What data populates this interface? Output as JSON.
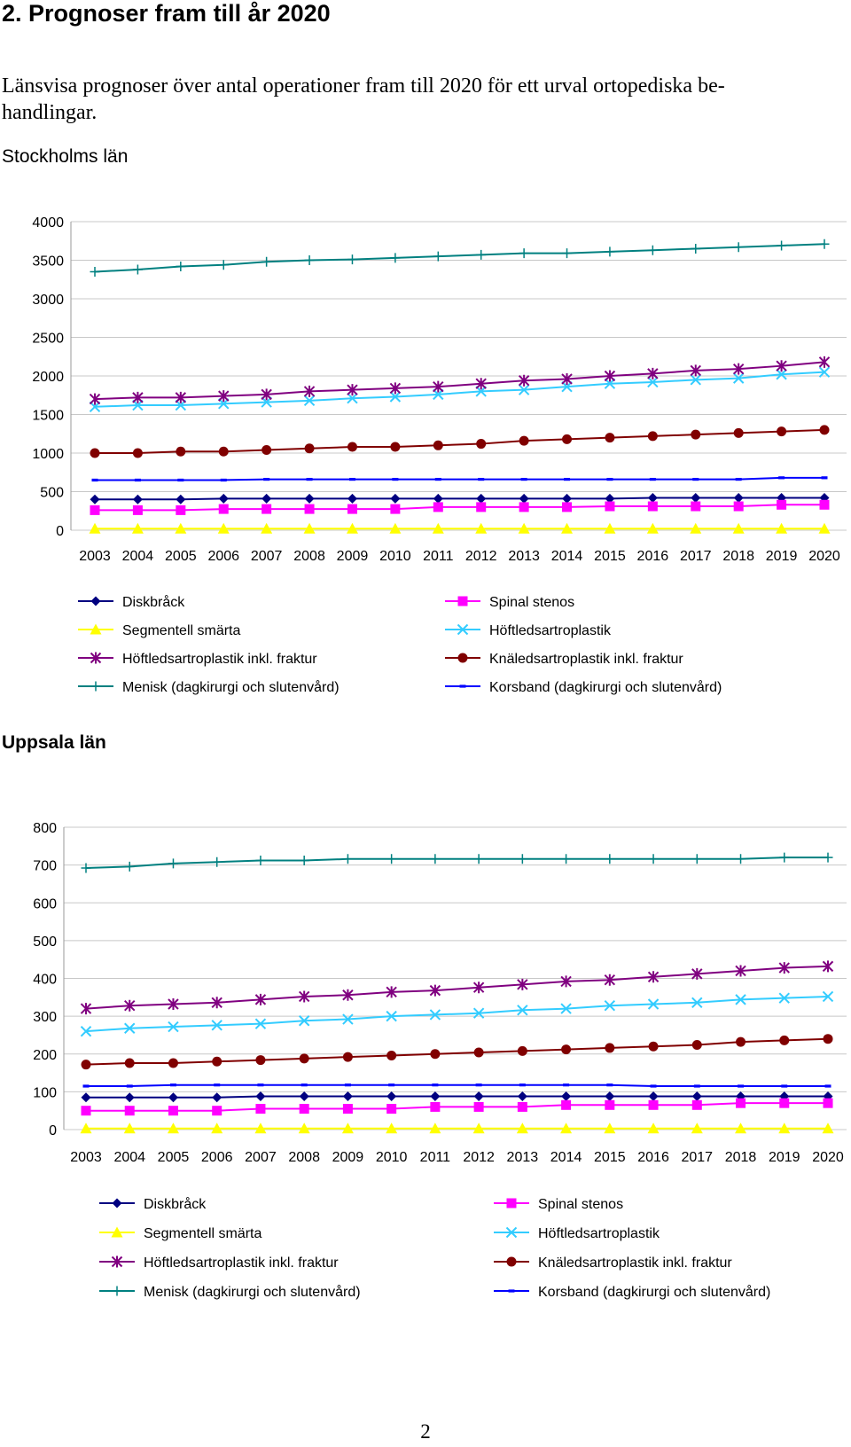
{
  "heading": "2. Prognoser fram till år 2020",
  "intro": "Länsvisa prognoser över antal operationer fram till 2020 för ett urval ortopediska be-handlingar.",
  "intro_line1": "Länsvisa prognoser över antal operationer fram till 2020 för ett urval ortopediska be-",
  "intro_line2": "handlingar.",
  "page_number": "2",
  "series_styles": [
    {
      "color": "#000080",
      "marker": "diamond"
    },
    {
      "color": "#ff00ff",
      "marker": "square"
    },
    {
      "color": "#ffff00",
      "marker": "triangle"
    },
    {
      "color": "#33ccff",
      "marker": "x"
    },
    {
      "color": "#800080",
      "marker": "star"
    },
    {
      "color": "#800000",
      "marker": "circle"
    },
    {
      "color": "#008080",
      "marker": "plus"
    },
    {
      "color": "#0000ff",
      "marker": "dash"
    }
  ],
  "chart_data": [
    {
      "type": "line",
      "title": "Stockholms län",
      "xlabel": "",
      "ylabel": "",
      "ylim": [
        0,
        4000
      ],
      "yticks": [
        "0",
        "500",
        "1000",
        "1500",
        "2000",
        "2500",
        "3000",
        "3500",
        "4000"
      ],
      "categories": [
        "2003",
        "2004",
        "2005",
        "2006",
        "2007",
        "2008",
        "2009",
        "2010",
        "2011",
        "2012",
        "2013",
        "2014",
        "2015",
        "2016",
        "2017",
        "2018",
        "2019",
        "2020"
      ],
      "grid": true,
      "legend_position": "bottom",
      "series": [
        {
          "name": "Diskbråck",
          "values": [
            400,
            400,
            400,
            410,
            410,
            410,
            410,
            410,
            410,
            410,
            410,
            410,
            410,
            420,
            420,
            420,
            420,
            420
          ]
        },
        {
          "name": "Spinal stenos",
          "values": [
            260,
            260,
            260,
            275,
            275,
            275,
            275,
            275,
            300,
            300,
            300,
            300,
            310,
            310,
            310,
            310,
            330,
            330
          ]
        },
        {
          "name": "Segmentell smärta",
          "values": [
            20,
            20,
            20,
            20,
            20,
            20,
            20,
            20,
            20,
            20,
            20,
            20,
            20,
            20,
            20,
            20,
            20,
            20
          ]
        },
        {
          "name": "Höftledsartroplastik",
          "values": [
            1600,
            1620,
            1620,
            1640,
            1660,
            1680,
            1710,
            1730,
            1760,
            1800,
            1820,
            1860,
            1900,
            1920,
            1950,
            1970,
            2020,
            2050
          ]
        },
        {
          "name": "Höftledsartroplastik inkl. fraktur",
          "values": [
            1700,
            1720,
            1720,
            1740,
            1760,
            1800,
            1820,
            1840,
            1860,
            1900,
            1940,
            1960,
            2000,
            2030,
            2070,
            2090,
            2130,
            2180
          ]
        },
        {
          "name": "Knäledsartroplastik inkl. fraktur",
          "values": [
            1000,
            1000,
            1020,
            1020,
            1040,
            1060,
            1080,
            1080,
            1100,
            1120,
            1160,
            1180,
            1200,
            1220,
            1240,
            1260,
            1280,
            1300
          ]
        },
        {
          "name": "Menisk (dagkirurgi och slutenvård)",
          "values": [
            3350,
            3380,
            3420,
            3440,
            3480,
            3500,
            3510,
            3530,
            3550,
            3570,
            3590,
            3590,
            3610,
            3630,
            3650,
            3670,
            3690,
            3710
          ]
        },
        {
          "name": "Korsband (dagkirurgi och slutenvård)",
          "values": [
            650,
            650,
            650,
            650,
            660,
            660,
            660,
            660,
            660,
            660,
            660,
            660,
            660,
            660,
            660,
            660,
            680,
            680
          ]
        }
      ]
    },
    {
      "type": "line",
      "title": "Uppsala län",
      "xlabel": "",
      "ylabel": "",
      "ylim": [
        0,
        800
      ],
      "yticks": [
        "0",
        "100",
        "200",
        "300",
        "400",
        "500",
        "600",
        "700",
        "800"
      ],
      "categories": [
        "2003",
        "2004",
        "2005",
        "2006",
        "2007",
        "2008",
        "2009",
        "2010",
        "2011",
        "2012",
        "2013",
        "2014",
        "2015",
        "2016",
        "2017",
        "2018",
        "2019",
        "2020"
      ],
      "grid": true,
      "legend_position": "bottom",
      "series": [
        {
          "name": "Diskbråck",
          "values": [
            85,
            85,
            85,
            85,
            88,
            88,
            88,
            88,
            88,
            88,
            88,
            88,
            88,
            88,
            88,
            88,
            88,
            88
          ]
        },
        {
          "name": "Spinal stenos",
          "values": [
            50,
            50,
            50,
            50,
            55,
            55,
            55,
            55,
            60,
            60,
            60,
            65,
            65,
            65,
            65,
            70,
            70,
            70
          ]
        },
        {
          "name": "Segmentell smärta",
          "values": [
            3,
            3,
            3,
            3,
            3,
            3,
            3,
            3,
            3,
            3,
            3,
            3,
            3,
            3,
            3,
            3,
            3,
            3
          ]
        },
        {
          "name": "Höftledsartroplastik",
          "values": [
            260,
            268,
            272,
            276,
            280,
            288,
            292,
            300,
            304,
            308,
            316,
            320,
            328,
            332,
            336,
            344,
            348,
            352
          ]
        },
        {
          "name": "Höftledsartroplastik inkl. fraktur",
          "values": [
            320,
            328,
            332,
            336,
            344,
            352,
            356,
            364,
            368,
            376,
            384,
            392,
            396,
            404,
            412,
            420,
            428,
            432
          ]
        },
        {
          "name": "Knäledsartroplastik inkl. fraktur",
          "values": [
            172,
            176,
            176,
            180,
            184,
            188,
            192,
            196,
            200,
            204,
            208,
            212,
            216,
            220,
            224,
            232,
            236,
            240
          ]
        },
        {
          "name": "Menisk (dagkirurgi och slutenvård)",
          "values": [
            692,
            696,
            704,
            708,
            712,
            712,
            716,
            716,
            716,
            716,
            716,
            716,
            716,
            716,
            716,
            716,
            720,
            720
          ]
        },
        {
          "name": "Korsband (dagkirurgi och slutenvård)",
          "values": [
            115,
            115,
            118,
            118,
            118,
            118,
            118,
            118,
            118,
            118,
            118,
            118,
            118,
            115,
            115,
            115,
            115,
            115
          ]
        }
      ]
    }
  ]
}
